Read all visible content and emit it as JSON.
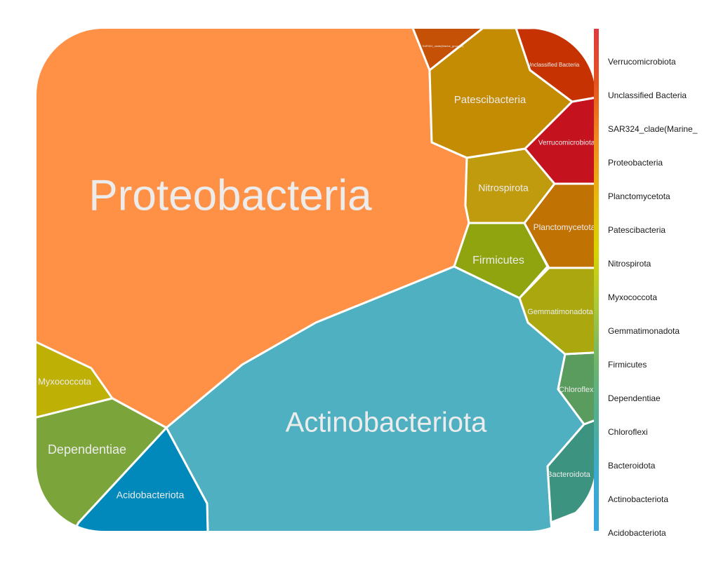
{
  "chart_data": {
    "type": "voronoi-treemap",
    "cells": [
      {
        "name": "Proteobacteria",
        "color": "#FF9147"
      },
      {
        "name": "Actinobacteriota",
        "color": "#4FB0C1"
      },
      {
        "name": "Acidobacteriota",
        "color": "#0089BA"
      },
      {
        "name": "Dependentiae",
        "color": "#7BA53A"
      },
      {
        "name": "Myxococcota",
        "color": "#BEB005"
      },
      {
        "name": "Bacteroidota",
        "color": "#3C937F"
      },
      {
        "name": "Chloroflexi",
        "color": "#5A9C5E"
      },
      {
        "name": "Gemmatimonadota",
        "color": "#AAA80E"
      },
      {
        "name": "Firmicutes",
        "color": "#8FA40E"
      },
      {
        "name": "Planctomycetota",
        "color": "#C07203"
      },
      {
        "name": "Nitrospirota",
        "color": "#C09B0E"
      },
      {
        "name": "Patescibacteria",
        "color": "#C48C03"
      },
      {
        "name": "Verrucomicrobiota",
        "color": "#C5121F"
      },
      {
        "name": "Unclassified Bacteria",
        "color": "#C63201"
      },
      {
        "name": "SAR324_clade(Marine_group_B)",
        "color": "#C45106"
      }
    ],
    "legend": {
      "position": "right",
      "entries": [
        "Verrucomicrobiota",
        "Unclassified Bacteria",
        "SAR324_clade(Marine_",
        "Proteobacteria",
        "Planctomycetota",
        "Patescibacteria",
        "Nitrospirota",
        "Myxococcota",
        "Gemmatimonadota",
        "Firmicutes",
        "Dependentiae",
        "Chloroflexi",
        "Bacteroidota",
        "Actinobacteriota",
        "Acidobacteriota"
      ],
      "gradient_colors": [
        "#E03A3E",
        "#E6541E",
        "#F08A1E",
        "#E8B80C",
        "#D8D400",
        "#A7C83A",
        "#6DB46E",
        "#4FAE96",
        "#3AAAD0",
        "#38A6E0"
      ]
    }
  }
}
